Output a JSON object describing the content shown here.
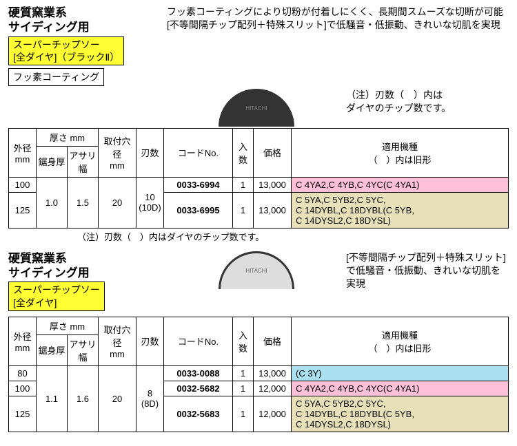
{
  "sec1": {
    "title": "硬質窯業系\nサイディング用",
    "yellow": "スーパーチップソー\n[全ダイヤ]（ブラックⅡ）",
    "coating": "フッ素コーティング",
    "desc": "フッ素コーティングにより切粉が付着しにくく、長期間スムーズな切断が可能\n[不等間隔チップ配列＋特殊スリット]で低騒音・低振動、きれいな切肌を実現",
    "note": "（注）刃数（　）内は\nダイヤのチップ数です。",
    "footnote": "（注）刃数（　）内はダイヤのチップ数です。",
    "blade_label": "HITACHI",
    "headers": {
      "dia": "外径\nmm",
      "thick": "厚さ mm",
      "body": "鋸身厚",
      "kerf": "アサリ幅",
      "hole": "取付穴径\nmm",
      "teeth": "刃数",
      "code": "コードNo.",
      "qty": "入数",
      "price": "価格",
      "compat": "適用機種\n（　）内は旧形"
    },
    "body_v": "1.0",
    "kerf_v": "1.5",
    "hole_v": "20",
    "teeth_v": "10\n(10D)",
    "rows": [
      {
        "dia": "100",
        "code": "0033-6994",
        "qty": "1",
        "price": "13,000",
        "compat": "C 4YA2,C 4YB,C 4YC(C 4YA1)",
        "cls": "pink"
      },
      {
        "dia": "125",
        "code": "0033-6995",
        "qty": "1",
        "price": "13,000",
        "compat": "C 5YA,C 5YB2,C 5YC,\nC 14DYBL,C 18DYBL(C 5YB,\nC 14DYSL2,C 18DYSL)",
        "cls": "tan"
      }
    ]
  },
  "sec2": {
    "title": "硬質窯業系\nサイディング用",
    "yellow": "スーパーチップソー\n[全ダイヤ]",
    "desc": "[不等間隔チップ配列＋特殊スリット]で低騒音・低振動、きれいな切肌を実現",
    "blade_label": "HITACHI",
    "headers": {
      "dia": "外径\nmm",
      "thick": "厚さ mm",
      "body": "鋸身厚",
      "kerf": "アサリ幅",
      "hole": "取付穴径\nmm",
      "teeth": "刃数",
      "code": "コードNo.",
      "qty": "入数",
      "price": "価格",
      "compat": "適用機種\n（　）内は旧形"
    },
    "body_v": "1.1",
    "kerf_v": "1.6",
    "hole_v": "20",
    "teeth_v": "8\n(8D)",
    "rows": [
      {
        "dia": "80",
        "code": "0033-0088",
        "qty": "1",
        "price": "13,000",
        "compat": "(C 3Y)",
        "cls": "blue"
      },
      {
        "dia": "100",
        "code": "0032-5682",
        "qty": "1",
        "price": "12,000",
        "compat": "C 4YA2,C 4YB,C 4YC(C 4YA1)",
        "cls": "pink"
      },
      {
        "dia": "125",
        "code": "0032-5683",
        "qty": "1",
        "price": "12,000",
        "compat": "C 5YA,C 5YB2,C 5YC,\nC 14DYBL,C 18DYBL(C 5YB,\nC 14DYSL2,C 18DYSL)",
        "cls": "tan"
      }
    ]
  }
}
